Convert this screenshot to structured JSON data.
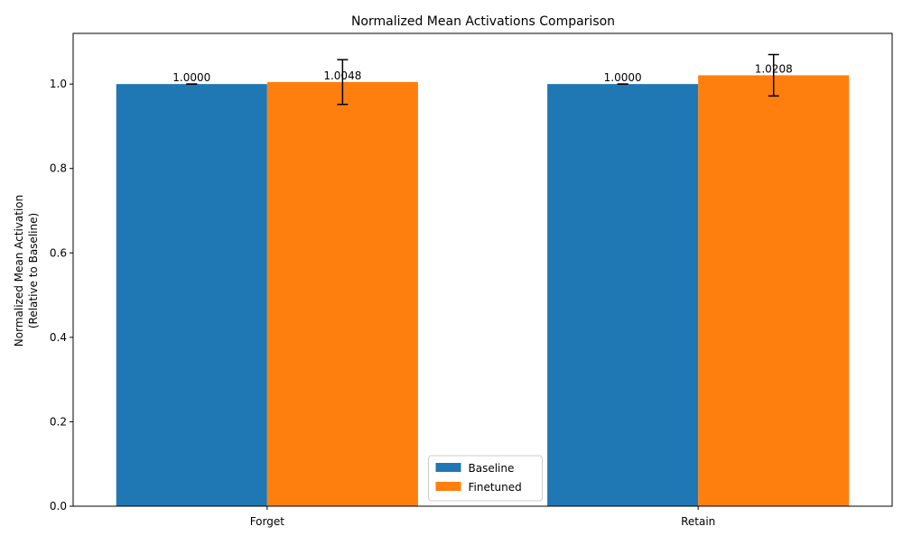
{
  "chart_data": {
    "type": "bar",
    "title": "Normalized Mean Activations Comparison",
    "xlabel": "",
    "ylabel_lines": [
      "Normalized Mean Activation",
      "(Relative to Baseline)"
    ],
    "categories": [
      "Forget",
      "Retain"
    ],
    "ylim": [
      0,
      1.12
    ],
    "yticks": [
      0.0,
      0.2,
      0.4,
      0.6,
      0.8,
      1.0
    ],
    "ytick_labels": [
      "0.0",
      "0.2",
      "0.4",
      "0.6",
      "0.8",
      "1.0"
    ],
    "grid": false,
    "legend_position": "bottom-center",
    "series": [
      {
        "name": "Baseline",
        "color": "#1f77b4",
        "values": [
          1.0,
          1.0
        ],
        "errors": [
          0.0,
          0.0
        ],
        "labels": [
          "1.0000",
          "1.0000"
        ]
      },
      {
        "name": "Finetuned",
        "color": "#ff7f0e",
        "values": [
          1.0048,
          1.0208
        ],
        "errors": [
          0.053,
          0.049
        ],
        "labels": [
          "1.0048",
          "1.0208"
        ]
      }
    ]
  }
}
